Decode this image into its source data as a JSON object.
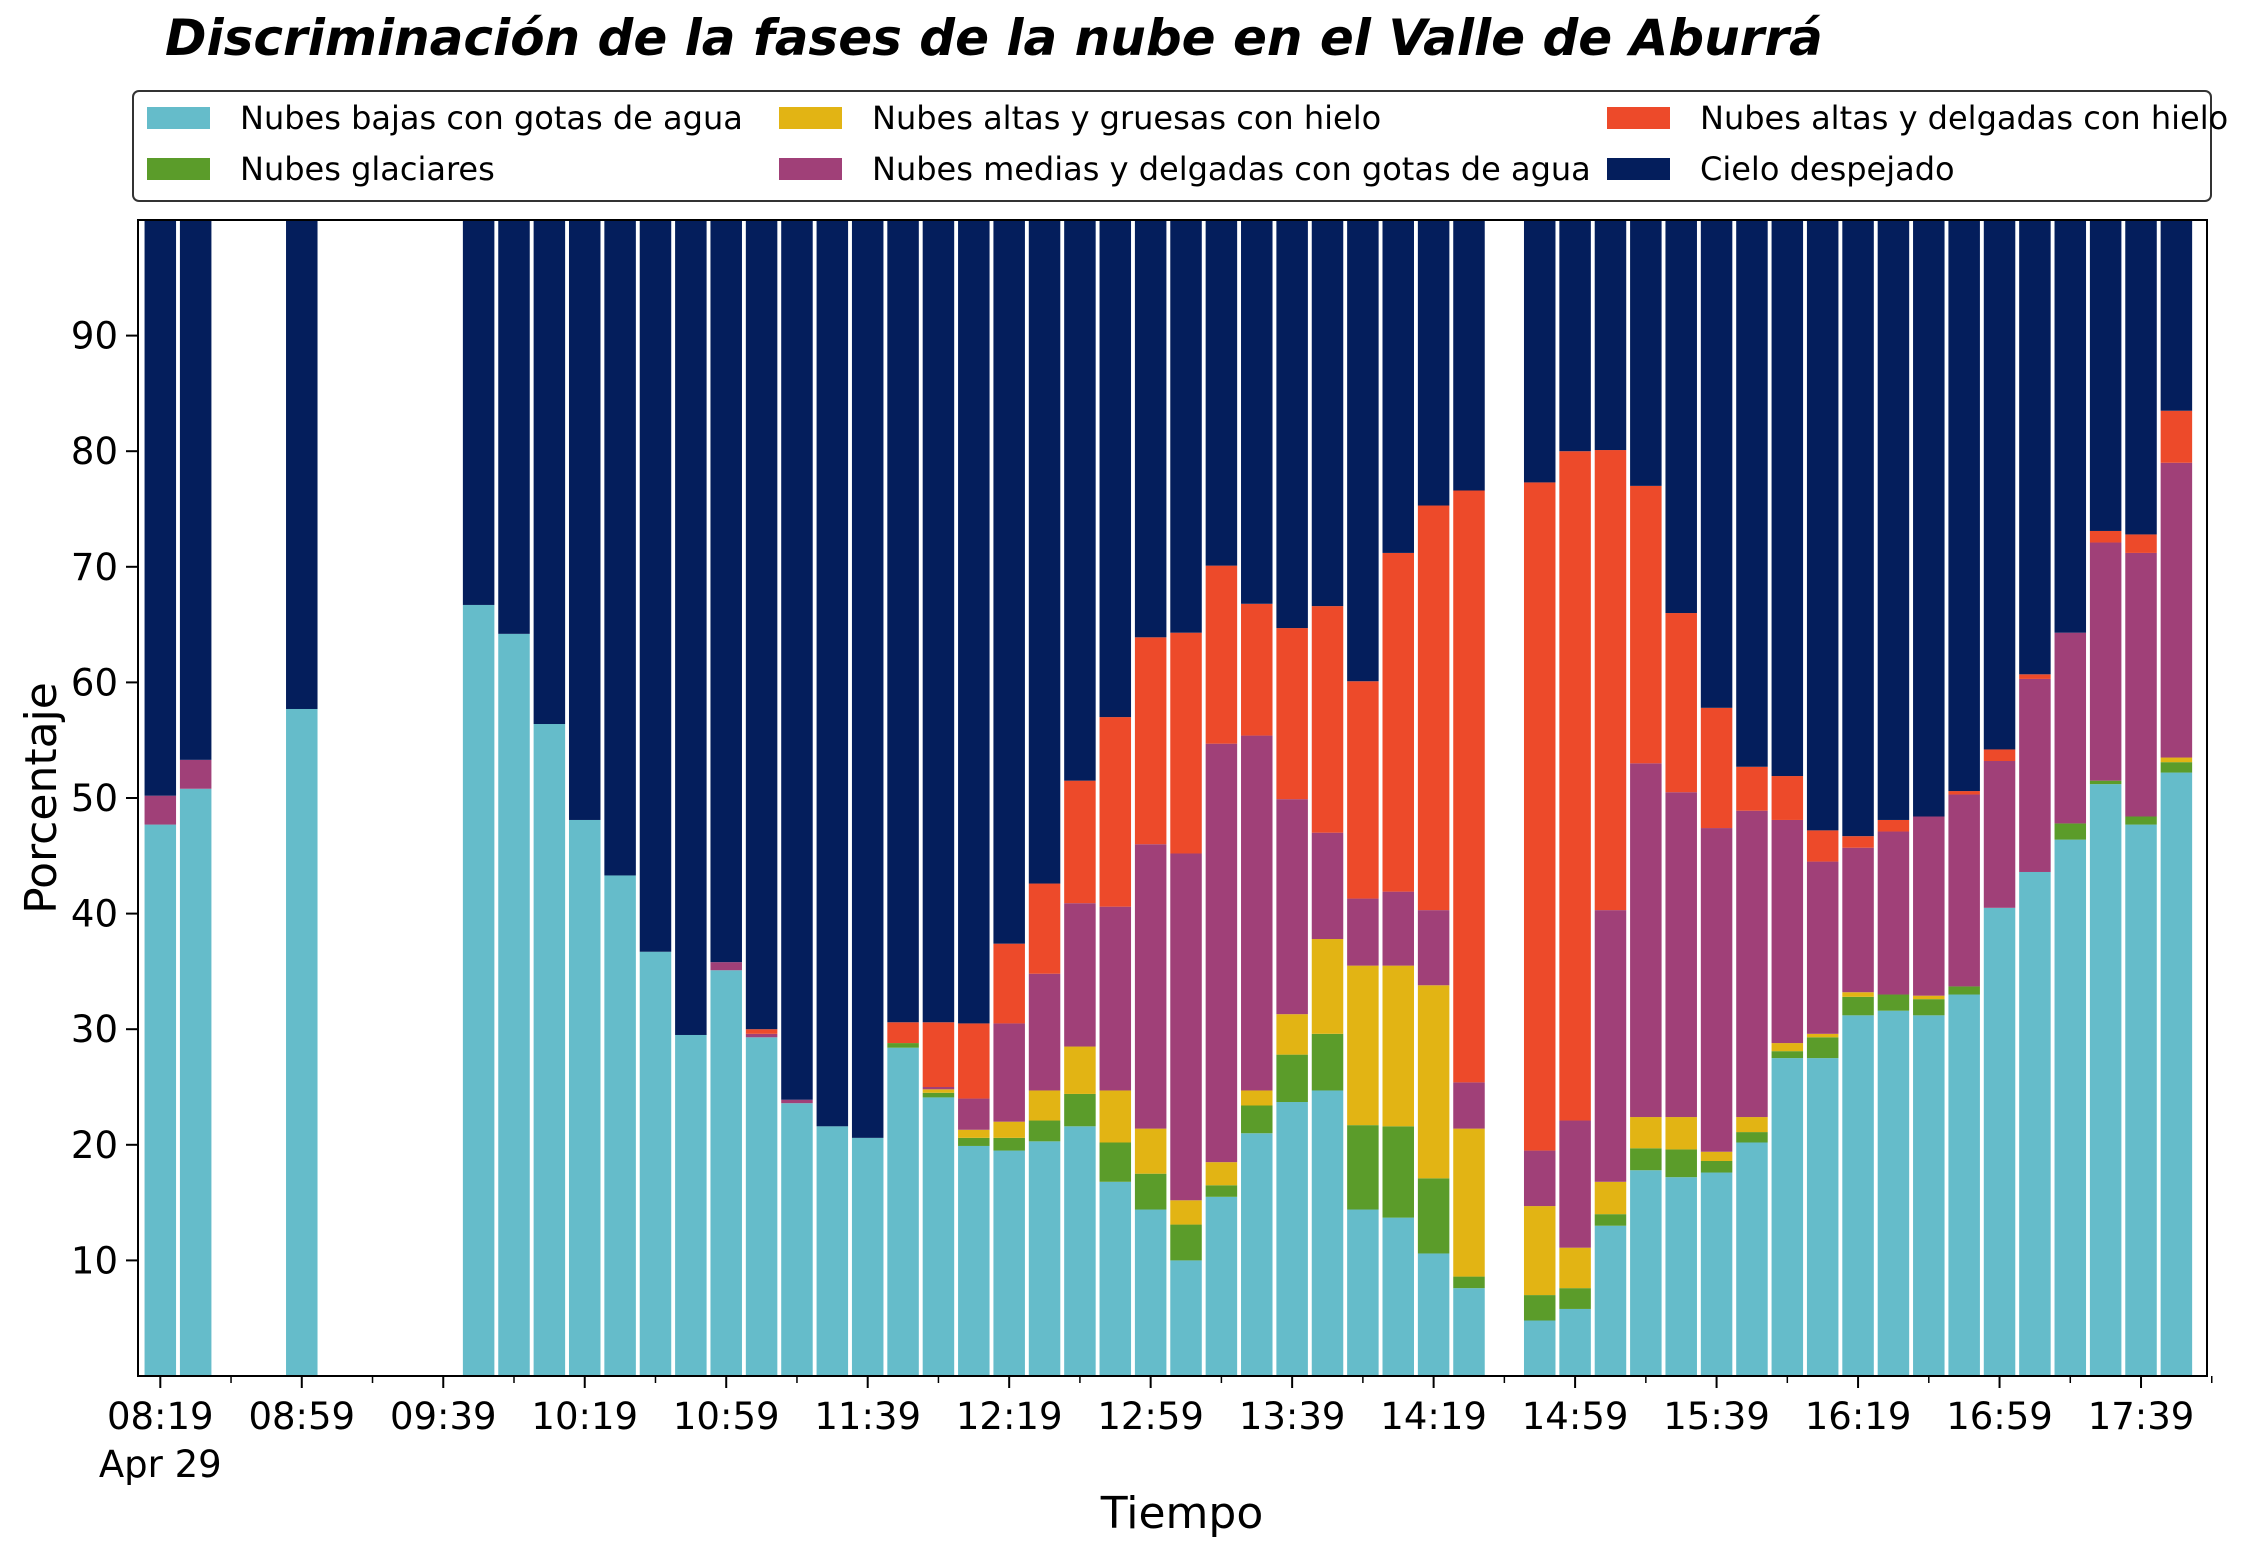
{
  "chart_data": {
    "type": "bar",
    "stacked": true,
    "title": "Discriminación de la fases de la nube en el Valle de Aburrá",
    "xlabel": "Tiempo",
    "ylabel": "Porcentaje",
    "ylim": [
      0,
      100
    ],
    "yticks": [
      10,
      20,
      30,
      40,
      50,
      60,
      70,
      80,
      90
    ],
    "grid": false,
    "legend_position": "top",
    "x_major_ticks": [
      {
        "slot": 0,
        "label": "08:19",
        "sublabel": "Apr 29"
      },
      {
        "slot": 4,
        "label": "08:59"
      },
      {
        "slot": 8,
        "label": "09:39"
      },
      {
        "slot": 12,
        "label": "10:19"
      },
      {
        "slot": 16,
        "label": "10:59"
      },
      {
        "slot": 20,
        "label": "11:39"
      },
      {
        "slot": 24,
        "label": "12:19"
      },
      {
        "slot": 28,
        "label": "12:59"
      },
      {
        "slot": 32,
        "label": "13:39"
      },
      {
        "slot": 36,
        "label": "14:19"
      },
      {
        "slot": 40,
        "label": "14:59"
      },
      {
        "slot": 44,
        "label": "15:39"
      },
      {
        "slot": 48,
        "label": "16:19"
      },
      {
        "slot": 52,
        "label": "16:59"
      },
      {
        "slot": 56,
        "label": "17:39"
      }
    ],
    "slot_count": 59,
    "first_slot_time": "08:19",
    "slot_minutes": 10,
    "x_slots": [
      0,
      1,
      4,
      9,
      10,
      11,
      12,
      13,
      14,
      15,
      16,
      17,
      18,
      19,
      20,
      21,
      22,
      23,
      24,
      25,
      26,
      27,
      28,
      29,
      30,
      31,
      32,
      33,
      34,
      35,
      36,
      37,
      39,
      40,
      41,
      42,
      43,
      44,
      45,
      46,
      47,
      48,
      49,
      50,
      51,
      52,
      53,
      54,
      55,
      56,
      57
    ],
    "series": [
      {
        "name": "Nubes bajas con gotas de agua",
        "color": "#65bcca",
        "values": [
          47.7,
          50.8,
          57.7,
          66.7,
          64.2,
          56.4,
          48.1,
          43.3,
          36.7,
          29.5,
          35.1,
          29.3,
          23.6,
          21.6,
          20.6,
          28.4,
          24.1,
          19.9,
          19.5,
          20.3,
          21.6,
          16.8,
          14.4,
          10.0,
          15.5,
          21.0,
          23.7,
          24.7,
          14.4,
          13.7,
          10.6,
          7.6,
          4.8,
          5.8,
          13.0,
          17.8,
          17.2,
          17.6,
          20.2,
          27.5,
          27.5,
          31.2,
          31.6,
          31.2,
          33.0,
          40.5,
          43.6,
          46.4,
          51.2,
          47.7,
          52.2
        ]
      },
      {
        "name": "Nubes glaciares",
        "color": "#5b9c2a",
        "values": [
          0,
          0,
          0,
          0,
          0,
          0,
          0,
          0,
          0,
          0,
          0,
          0,
          0,
          0,
          0,
          0.4,
          0.4,
          0.7,
          1.1,
          1.8,
          2.8,
          3.4,
          3.1,
          3.1,
          1.0,
          2.4,
          4.1,
          4.9,
          7.3,
          7.9,
          6.5,
          1.0,
          2.2,
          1.8,
          1.0,
          1.9,
          2.4,
          1.0,
          0.9,
          0.6,
          1.8,
          1.6,
          1.4,
          1.4,
          0.7,
          0,
          0,
          1.4,
          0.3,
          0.7,
          0.9
        ]
      },
      {
        "name": "Nubes altas y gruesas con hielo",
        "color": "#e2b414",
        "values": [
          0,
          0,
          0,
          0,
          0,
          0,
          0,
          0,
          0,
          0,
          0,
          0,
          0,
          0,
          0,
          0,
          0.3,
          0.7,
          1.4,
          2.6,
          4.1,
          4.5,
          3.9,
          2.1,
          2.0,
          1.3,
          3.5,
          8.2,
          13.8,
          13.9,
          16.7,
          12.8,
          7.7,
          3.5,
          2.8,
          2.7,
          2.8,
          0.8,
          1.3,
          0.7,
          0.3,
          0.4,
          0,
          0.3,
          0,
          0,
          0,
          0,
          0,
          0,
          0.4
        ]
      },
      {
        "name": "Nubes medias y delgadas con gotas de agua",
        "color": "#a04078",
        "values": [
          2.5,
          2.5,
          0,
          0,
          0,
          0,
          0,
          0,
          0,
          0,
          0.7,
          0.3,
          0.3,
          0,
          0,
          0,
          0.2,
          2.7,
          8.5,
          10.1,
          12.4,
          15.9,
          24.6,
          30.0,
          36.2,
          30.7,
          18.6,
          9.2,
          5.8,
          6.4,
          6.5,
          4.0,
          4.8,
          11.0,
          23.5,
          30.6,
          28.1,
          28.0,
          26.5,
          19.3,
          14.9,
          12.5,
          14.1,
          15.5,
          16.6,
          12.7,
          16.7,
          16.5,
          20.6,
          22.8,
          25.5
        ]
      },
      {
        "name": "Nubes altas y delgadas con hielo",
        "color": "#ed4a2a",
        "values": [
          0,
          0,
          0,
          0,
          0,
          0,
          0,
          0,
          0,
          0,
          0,
          0.4,
          0,
          0,
          0,
          1.8,
          5.6,
          6.5,
          6.9,
          7.8,
          10.6,
          16.4,
          17.9,
          19.1,
          15.4,
          11.4,
          14.8,
          19.6,
          18.8,
          29.3,
          35.0,
          51.2,
          57.8,
          57.9,
          39.8,
          24.0,
          15.5,
          10.4,
          3.8,
          3.8,
          2.7,
          1.0,
          1.0,
          0,
          0.3,
          1.0,
          0.4,
          0,
          1.0,
          1.6,
          4.5
        ]
      },
      {
        "name": "Cielo despejado",
        "color": "#041e5c",
        "values": [
          49.8,
          46.7,
          42.3,
          33.3,
          35.8,
          43.6,
          51.9,
          56.7,
          63.3,
          70.5,
          64.2,
          70.0,
          76.1,
          78.4,
          79.4,
          69.4,
          69.4,
          69.5,
          62.6,
          57.4,
          48.5,
          43.0,
          36.1,
          35.7,
          29.9,
          33.2,
          35.3,
          33.4,
          39.9,
          28.8,
          24.7,
          23.4,
          22.7,
          20.0,
          19.9,
          23.0,
          34.0,
          42.2,
          47.3,
          48.1,
          52.8,
          53.3,
          51.9,
          51.6,
          49.4,
          45.8,
          39.3,
          35.7,
          26.9,
          27.2,
          16.5
        ]
      }
    ]
  }
}
